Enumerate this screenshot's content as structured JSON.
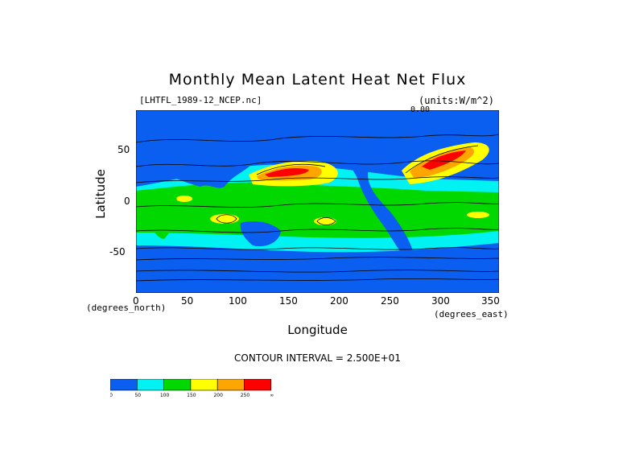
{
  "title": "Monthly Mean Latent Heat Net Flux",
  "file_label": "[LHTFL_1989-12_NCEP.nc]",
  "units_label": "(units:W/m^2)",
  "x_axis": {
    "label": "Longitude",
    "unit_label": "(degrees_east)",
    "ticks": [
      "0",
      "50",
      "100",
      "150",
      "200",
      "250",
      "300",
      "350"
    ],
    "range": [
      0,
      357.5
    ]
  },
  "y_axis": {
    "label": "Latitude",
    "unit_label": "(degrees_north)",
    "ticks": [
      "50",
      "0",
      "-50"
    ],
    "range": [
      -90,
      90
    ]
  },
  "map_annotation": "0.00",
  "contour_text": "CONTOUR INTERVAL = 2.500E+01",
  "legend": {
    "colors": [
      "#0a5ef0",
      "#00f2f2",
      "#00d800",
      "#ffff00",
      "#ffa500",
      "#ff0000"
    ],
    "labels": [
      "0",
      "50",
      "100",
      "150",
      "200",
      "250",
      "∞"
    ]
  },
  "chart_data": {
    "type": "heatmap",
    "title": "Monthly Mean Latent Heat Net Flux",
    "xlabel": "Longitude",
    "ylabel": "Latitude",
    "xlim": [
      0,
      357.5
    ],
    "ylim": [
      -90,
      90
    ],
    "contour_interval": 25,
    "levels": [
      0,
      50,
      100,
      150,
      200,
      250
    ],
    "colors": [
      "#0a5ef0",
      "#00f2f2",
      "#00d800",
      "#ffff00",
      "#ffa500",
      "#ff0000"
    ]
  }
}
